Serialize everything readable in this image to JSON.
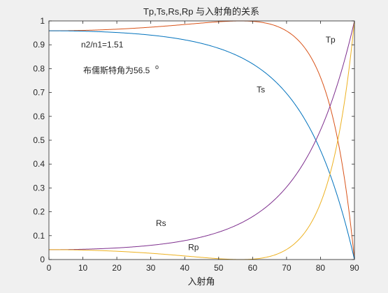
{
  "chart_data": {
    "type": "line",
    "title": "Tp,Ts,Rs,Rp 与入射角的关系",
    "xlabel": "入射角",
    "ylabel": "",
    "xlim": [
      0,
      90
    ],
    "ylim": [
      0,
      1
    ],
    "xticks": [
      "0",
      "10",
      "20",
      "30",
      "40",
      "50",
      "60",
      "70",
      "80",
      "90"
    ],
    "yticks": [
      "0",
      "0.1",
      "0.2",
      "0.3",
      "0.4",
      "0.5",
      "0.6",
      "0.7",
      "0.8",
      "0.9",
      "1"
    ],
    "grid": false,
    "n_ratio": 1.51,
    "annotations": {
      "ratio": "n2/n1=1.51",
      "brewster_text": "布儒斯特角为56.5",
      "degree_mark": "o"
    },
    "series": [
      {
        "name": "Tp",
        "color": "#d95319",
        "x": [
          0,
          10,
          20,
          30,
          40,
          50,
          56.5,
          60,
          70,
          80,
          85,
          88,
          89,
          90
        ],
        "y": [
          0.959,
          0.96,
          0.963,
          0.972,
          0.985,
          0.997,
          1.0,
          0.998,
          0.976,
          0.866,
          0.691,
          0.375,
          0.2,
          0.0
        ]
      },
      {
        "name": "Ts",
        "color": "#0072bd",
        "x": [
          0,
          10,
          20,
          30,
          40,
          50,
          60,
          70,
          80,
          85,
          88,
          89,
          90
        ],
        "y": [
          0.959,
          0.958,
          0.953,
          0.941,
          0.916,
          0.867,
          0.774,
          0.592,
          0.319,
          0.164,
          0.064,
          0.032,
          0.0
        ]
      },
      {
        "name": "Rs",
        "color": "#7e2f8e",
        "x": [
          0,
          10,
          20,
          30,
          40,
          50,
          60,
          70,
          80,
          85,
          88,
          89,
          90
        ],
        "y": [
          0.041,
          0.042,
          0.047,
          0.059,
          0.084,
          0.133,
          0.226,
          0.408,
          0.681,
          0.836,
          0.936,
          0.968,
          1.0
        ]
      },
      {
        "name": "Rp",
        "color": "#edb120",
        "x": [
          0,
          10,
          20,
          30,
          40,
          50,
          56.5,
          60,
          70,
          80,
          85,
          88,
          89,
          90
        ],
        "y": [
          0.041,
          0.04,
          0.037,
          0.028,
          0.015,
          0.003,
          0.0,
          0.002,
          0.024,
          0.134,
          0.309,
          0.625,
          0.8,
          1.0
        ]
      }
    ],
    "series_labels": [
      {
        "text": "Tp",
        "x": 81.5,
        "y": 0.91
      },
      {
        "text": "Ts",
        "x": 61.2,
        "y": 0.7
      },
      {
        "text": "Rs",
        "x": 31.5,
        "y": 0.14
      },
      {
        "text": "Rp",
        "x": 41.0,
        "y": 0.04
      }
    ]
  }
}
